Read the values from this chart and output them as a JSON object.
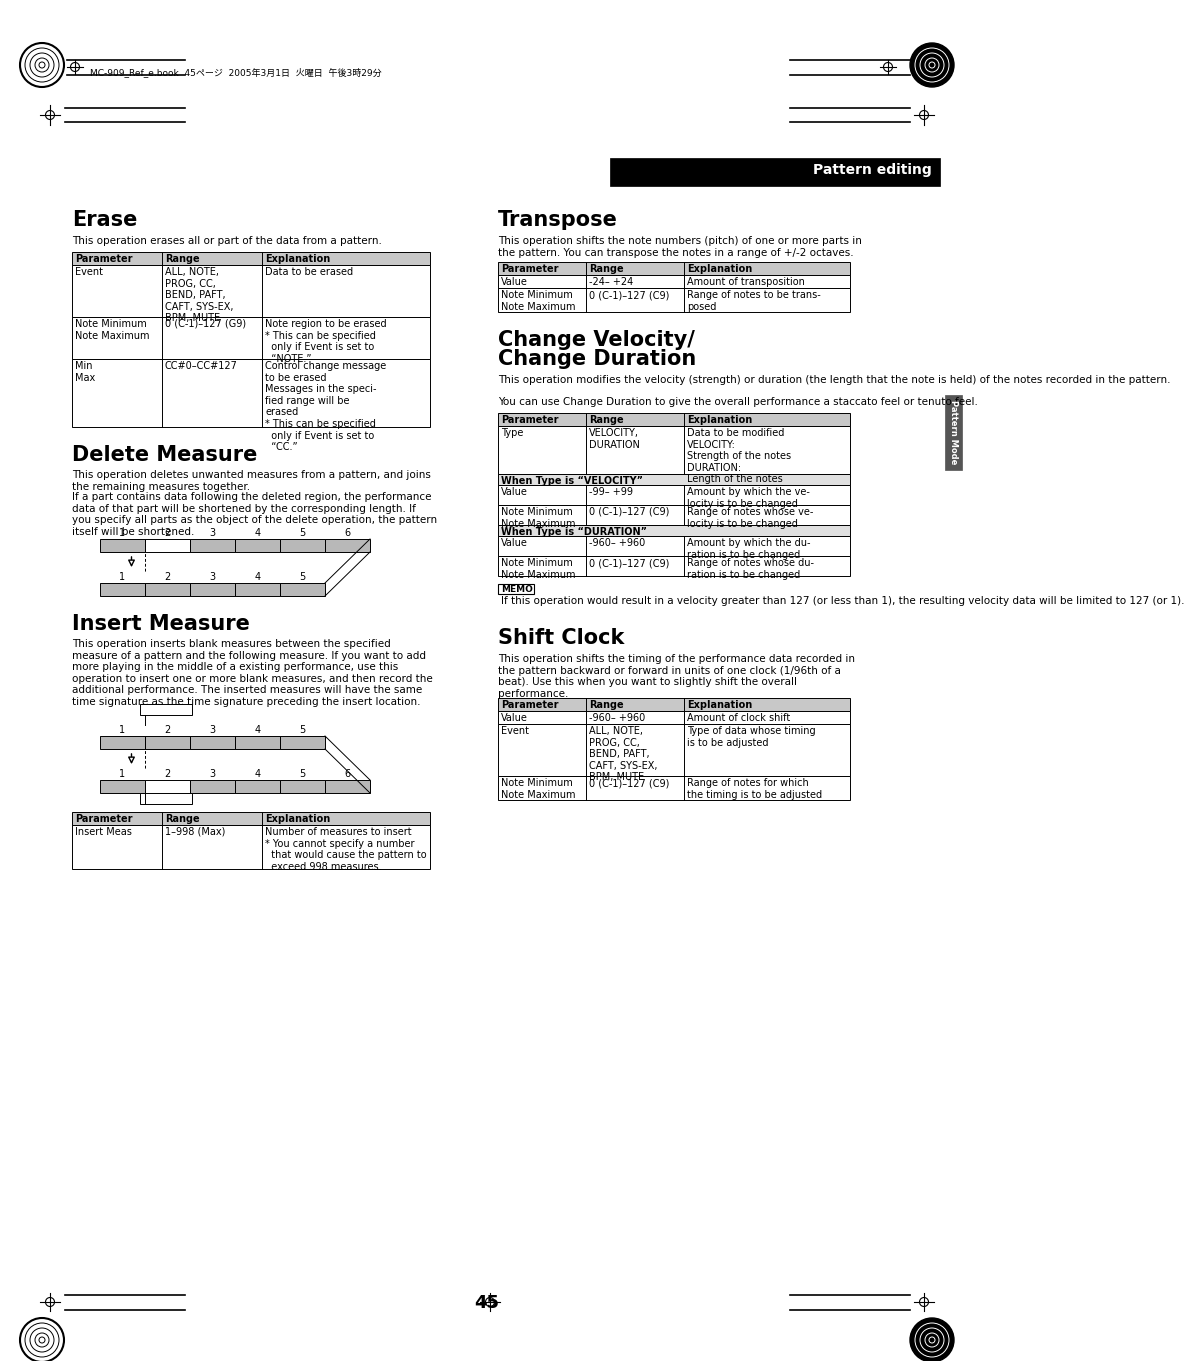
{
  "bg_color": "#ffffff",
  "page_num": "45",
  "header_text": "MC-909_Ref_e.book 45ページ　2005年3月1日　2火曜日　2午後3時29分",
  "header_label": "Pattern editing",
  "tab_label": "Pattern Mode",
  "erase_title": "Erase",
  "erase_desc": "This operation erases all or part of the data from a pattern.",
  "delete_title": "Delete Measure",
  "delete_desc1": "This operation deletes unwanted measures from a pattern, and joins the remaining measures together.",
  "delete_desc2": "If a part contains data following the deleted region, the performance data of that part will be shortened by the corresponding length. If you specify all parts as the object of the delete operation, the pattern itself will be shortened.",
  "insert_title": "Insert Measure",
  "insert_desc": "This operation inserts blank measures between the specified measure of a pattern and the following measure. If you want to add more playing in the middle of a existing performance, use this operation to insert one or more blank measures, and then record the additional performance. The inserted measures will have the same time signature as the time signature preceding the insert location.",
  "transpose_title": "Transpose",
  "transpose_desc": "This operation shifts the note numbers (pitch) of one or more parts in the pattern. You can transpose the notes in a range of +/-2 octaves.",
  "cv_desc1": "This operation modifies the velocity (strength) or duration (the length that the note is held) of the notes recorded in the pattern.",
  "cv_desc2": "You can use Change Duration to give the overall performance a staccato feel or tenuto feel.",
  "memo_text": "If this operation would result in a velocity greater than 127 (or less than 1), the resulting velocity data will be limited to 127 (or 1).",
  "shift_title": "Shift Clock",
  "shift_desc": "This operation shifts the timing of the performance data recorded in the pattern backward or forward in units of one clock (1/96th of a beat). Use this when you want to slightly shift the overall performance."
}
